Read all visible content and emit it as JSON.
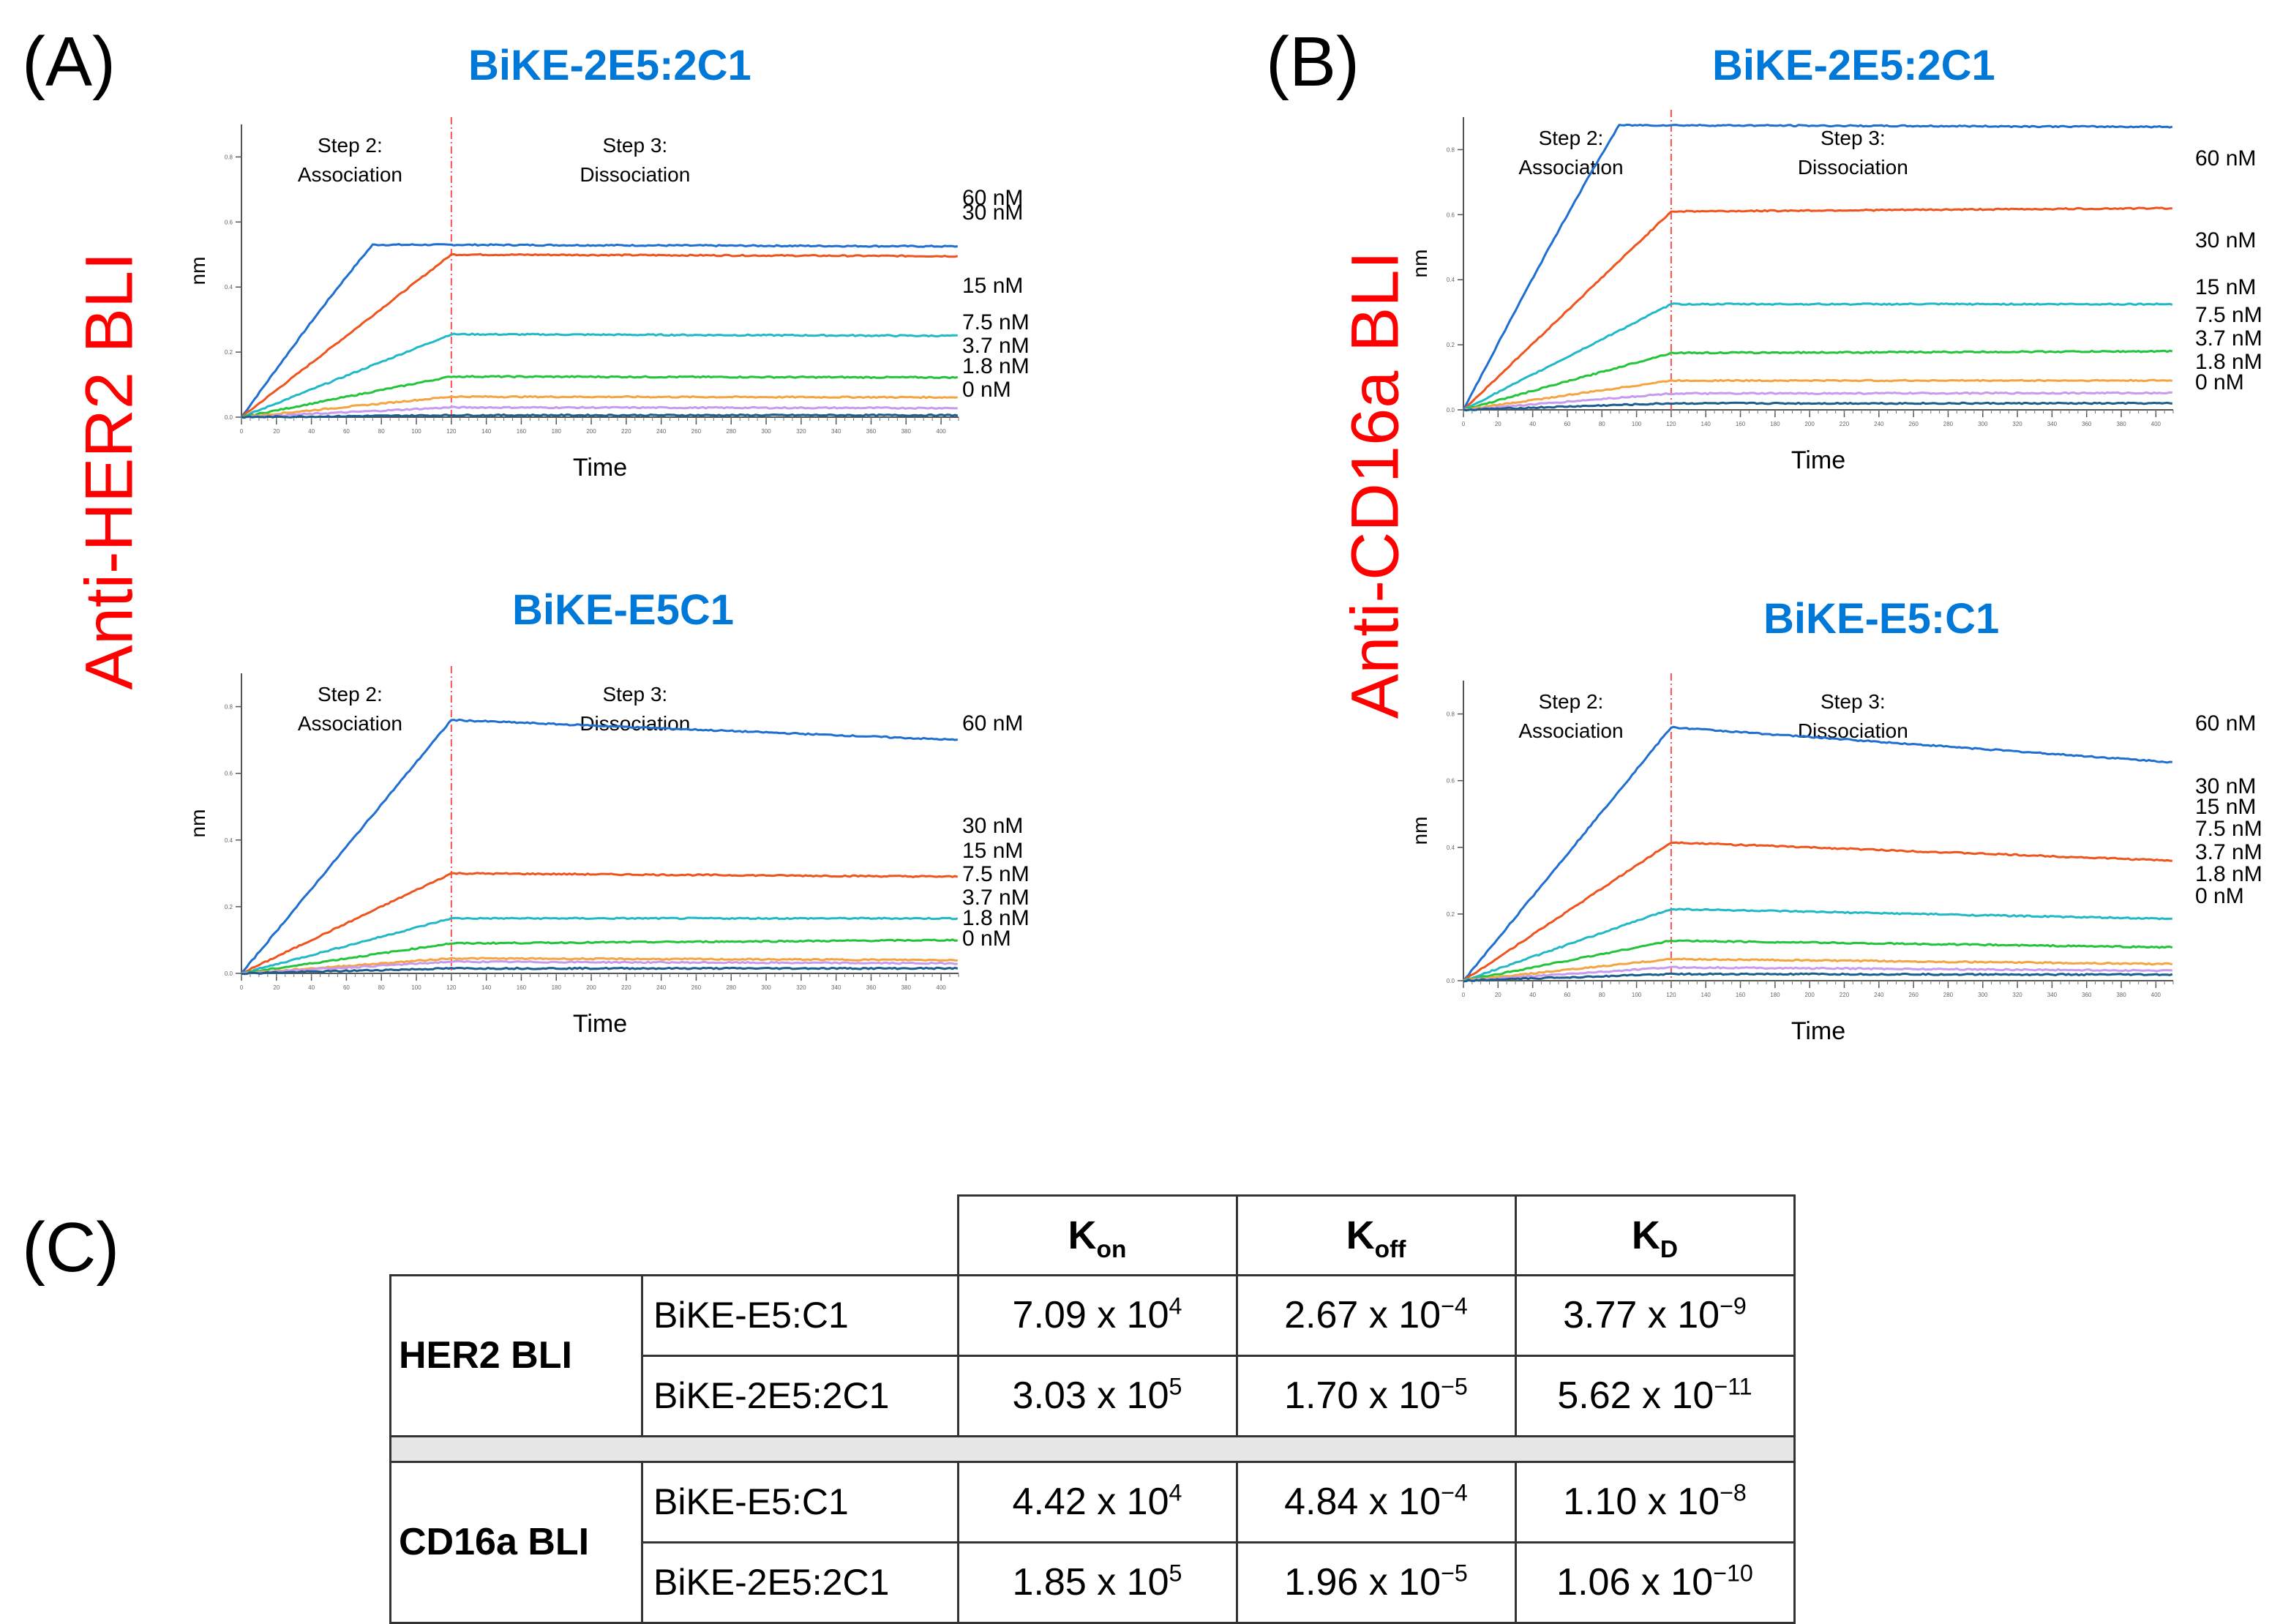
{
  "panels": {
    "a": "(A)",
    "b": "(B)",
    "c": "(C)"
  },
  "side_labels": {
    "left": "Anti-HER2 BLI",
    "right": "Anti-CD16a BLI"
  },
  "colors": {
    "title": "#0078d7",
    "side_label": "#ff0000",
    "series": [
      "#1f6fd0",
      "#f0541e",
      "#21b8c8",
      "#22c43a",
      "#f5a442",
      "#c79af0",
      "#1d5d8c"
    ]
  },
  "chart_data": [
    {
      "type": "line",
      "title": "BiKE-2E5:2C1",
      "xlabel": "Time",
      "ylabel": "nm",
      "xlim": [
        0,
        410
      ],
      "ylim": [
        0,
        0.9
      ],
      "step2": "Step 2:\nAssociation",
      "step3": "Step 3:\nDissociation",
      "step_boundary": 120,
      "series": [
        {
          "name": "60 nM",
          "label": "60 nM",
          "assoc_end": 0.53,
          "diss_end": 0.525,
          "sat_t": 75
        },
        {
          "name": "30 nM",
          "label": "30 nM",
          "assoc_end": 0.5,
          "diss_end": 0.495
        },
        {
          "name": "15 nM",
          "label": "15 nM",
          "assoc_end": 0.255,
          "diss_end": 0.25
        },
        {
          "name": "7.5 nM",
          "label": "7.5 nM",
          "assoc_end": 0.125,
          "diss_end": 0.122
        },
        {
          "name": "3.7 nM",
          "label": "3.7 nM",
          "assoc_end": 0.063,
          "diss_end": 0.061
        },
        {
          "name": "1.8 nM",
          "label": "1.8 nM",
          "assoc_end": 0.03,
          "diss_end": 0.028
        },
        {
          "name": "0 nM",
          "label": "0 nM",
          "assoc_end": 0.006,
          "diss_end": 0.006
        }
      ]
    },
    {
      "type": "line",
      "title": "BiKE-E5C1",
      "xlabel": "Time",
      "ylabel": "nm",
      "xlim": [
        0,
        410
      ],
      "ylim": [
        0,
        0.9
      ],
      "step2": "Step 2:\nAssociation",
      "step3": "Step 3:\nDissociation",
      "step_boundary": 120,
      "series": [
        {
          "name": "60 nM",
          "label": "60 nM",
          "assoc_end": 0.76,
          "diss_end": 0.7
        },
        {
          "name": "30 nM",
          "label": "30 nM",
          "assoc_end": 0.3,
          "diss_end": 0.29
        },
        {
          "name": "15 nM",
          "label": "15 nM",
          "assoc_end": 0.165,
          "diss_end": 0.165
        },
        {
          "name": "7.5 nM",
          "label": "7.5 nM",
          "assoc_end": 0.09,
          "diss_end": 0.1
        },
        {
          "name": "3.7 nM",
          "label": "3.7 nM",
          "assoc_end": 0.045,
          "diss_end": 0.04
        },
        {
          "name": "1.8 nM",
          "label": "1.8 nM",
          "assoc_end": 0.035,
          "diss_end": 0.03
        },
        {
          "name": "0 nM",
          "label": "0 nM",
          "assoc_end": 0.015,
          "diss_end": 0.015
        }
      ]
    },
    {
      "type": "line",
      "title": "BiKE-2E5:2C1",
      "xlabel": "Time",
      "ylabel": "nm",
      "xlim": [
        0,
        410
      ],
      "ylim": [
        0,
        0.9
      ],
      "step2": "Step 2:\nAssociation",
      "step3": "Step 3:\nDissociation",
      "step_boundary": 120,
      "series": [
        {
          "name": "60 nM",
          "label": "60 nM",
          "assoc_end": 0.875,
          "diss_end": 0.87,
          "sat_t": 90
        },
        {
          "name": "30 nM",
          "label": "30 nM",
          "assoc_end": 0.61,
          "diss_end": 0.62
        },
        {
          "name": "15 nM",
          "label": "15 nM",
          "assoc_end": 0.325,
          "diss_end": 0.325
        },
        {
          "name": "7.5 nM",
          "label": "7.5 nM",
          "assoc_end": 0.175,
          "diss_end": 0.18
        },
        {
          "name": "3.7 nM",
          "label": "3.7 nM",
          "assoc_end": 0.09,
          "diss_end": 0.09
        },
        {
          "name": "1.8 nM",
          "label": "1.8 nM",
          "assoc_end": 0.05,
          "diss_end": 0.052
        },
        {
          "name": "0 nM",
          "label": "0 nM",
          "assoc_end": 0.02,
          "diss_end": 0.02
        }
      ]
    },
    {
      "type": "line",
      "title": "BiKE-E5:C1",
      "xlabel": "Time",
      "ylabel": "nm",
      "xlim": [
        0,
        410
      ],
      "ylim": [
        0,
        0.9
      ],
      "step2": "Step 2:\nAssociation",
      "step3": "Step 3:\nDissociation",
      "step_boundary": 120,
      "series": [
        {
          "name": "60 nM",
          "label": "60 nM",
          "assoc_end": 0.76,
          "diss_end": 0.655
        },
        {
          "name": "30 nM",
          "label": "30 nM",
          "assoc_end": 0.415,
          "diss_end": 0.36
        },
        {
          "name": "15 nM",
          "label": "15 nM",
          "assoc_end": 0.215,
          "diss_end": 0.185
        },
        {
          "name": "7.5 nM",
          "label": "7.5 nM",
          "assoc_end": 0.12,
          "diss_end": 0.1
        },
        {
          "name": "3.7 nM",
          "label": "3.7 nM",
          "assoc_end": 0.065,
          "diss_end": 0.05
        },
        {
          "name": "1.8 nM",
          "label": "1.8 nM",
          "assoc_end": 0.04,
          "diss_end": 0.03
        },
        {
          "name": "0 nM",
          "label": "0 nM",
          "assoc_end": 0.02,
          "diss_end": 0.018
        }
      ]
    }
  ],
  "table": {
    "headers": {
      "kon": "K",
      "kon_sub": "on",
      "koff": "K",
      "koff_sub": "off",
      "kd": "K",
      "kd_sub": "D"
    },
    "groups": [
      {
        "name": "HER2 BLI",
        "rows": [
          {
            "label": "BiKE-E5:C1",
            "kon": "7.09 x 10",
            "kon_exp": "4",
            "koff": "2.67 x 10",
            "koff_exp": "−4",
            "kd": "3.77 x 10",
            "kd_exp": "−9"
          },
          {
            "label": "BiKE-2E5:2C1",
            "kon": "3.03 x 10",
            "kon_exp": "5",
            "koff": "1.70 x 10",
            "koff_exp": "−5",
            "kd": "5.62 x 10",
            "kd_exp": "−11"
          }
        ]
      },
      {
        "name": "CD16a BLI",
        "rows": [
          {
            "label": "BiKE-E5:C1",
            "kon": "4.42 x 10",
            "kon_exp": "4",
            "koff": "4.84 x 10",
            "koff_exp": "−4",
            "kd": "1.10 x 10",
            "kd_exp": "−8"
          },
          {
            "label": "BiKE-2E5:2C1",
            "kon": "1.85 x 10",
            "kon_exp": "5",
            "koff": "1.96 x 10",
            "koff_exp": "−5",
            "kd": "1.06 x 10",
            "kd_exp": "−10"
          }
        ]
      }
    ]
  }
}
